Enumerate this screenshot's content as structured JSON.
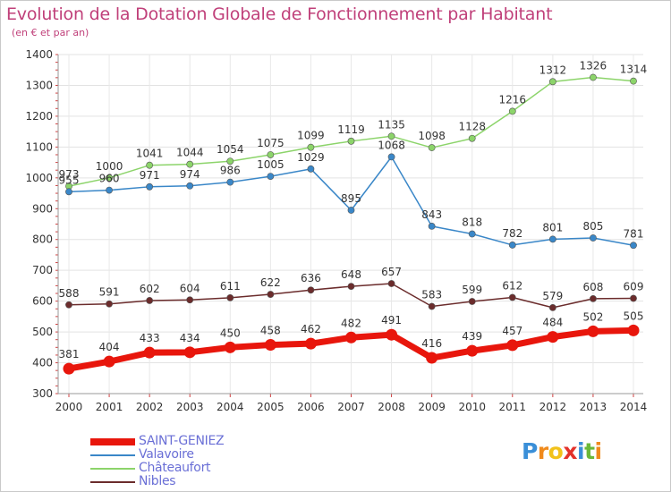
{
  "title": "Evolution de la Dotation Globale de Fonctionnement par Habitant",
  "subtitle": "(en € et par an)",
  "logo": {
    "letters": [
      "P",
      "r",
      "o",
      "x",
      "i",
      "t",
      "i"
    ],
    "colors": [
      "#3a8fd8",
      "#f08a1c",
      "#f2c21a",
      "#e3322b",
      "#3a8fd8",
      "#6bb83a",
      "#f08a1c"
    ]
  },
  "chart_data": {
    "type": "line",
    "x": [
      "2000",
      "2001",
      "2002",
      "2003",
      "2004",
      "2005",
      "2006",
      "2007",
      "2008",
      "2009",
      "2010",
      "2011",
      "2012",
      "2013",
      "2014"
    ],
    "yticks": [
      "300",
      "400",
      "500",
      "600",
      "700",
      "800",
      "900",
      "1000",
      "1100",
      "1200",
      "1300",
      "1400"
    ],
    "ylim": [
      300,
      1400
    ],
    "grid": true,
    "legend_position": "bottom-left",
    "series": [
      {
        "name": "SAINT-GENIEZ",
        "color": "#e8160c",
        "values": [
          381,
          404,
          433,
          434,
          450,
          458,
          462,
          482,
          491,
          416,
          439,
          457,
          484,
          502,
          505
        ]
      },
      {
        "name": "Valavoire",
        "color": "#3a87c8",
        "values": [
          955,
          960,
          971,
          974,
          986,
          1005,
          1029,
          895,
          1068,
          843,
          818,
          782,
          801,
          805,
          781
        ]
      },
      {
        "name": "Châteaufort",
        "color": "#8cd46a",
        "values": [
          973,
          1000,
          1041,
          1044,
          1054,
          1075,
          1099,
          1119,
          1135,
          1098,
          1128,
          1216,
          1312,
          1326,
          1314
        ]
      },
      {
        "name": "Nibles",
        "color": "#6b2c2c",
        "values": [
          588,
          591,
          602,
          604,
          611,
          622,
          636,
          648,
          657,
          583,
          599,
          612,
          579,
          608,
          609
        ]
      }
    ]
  }
}
